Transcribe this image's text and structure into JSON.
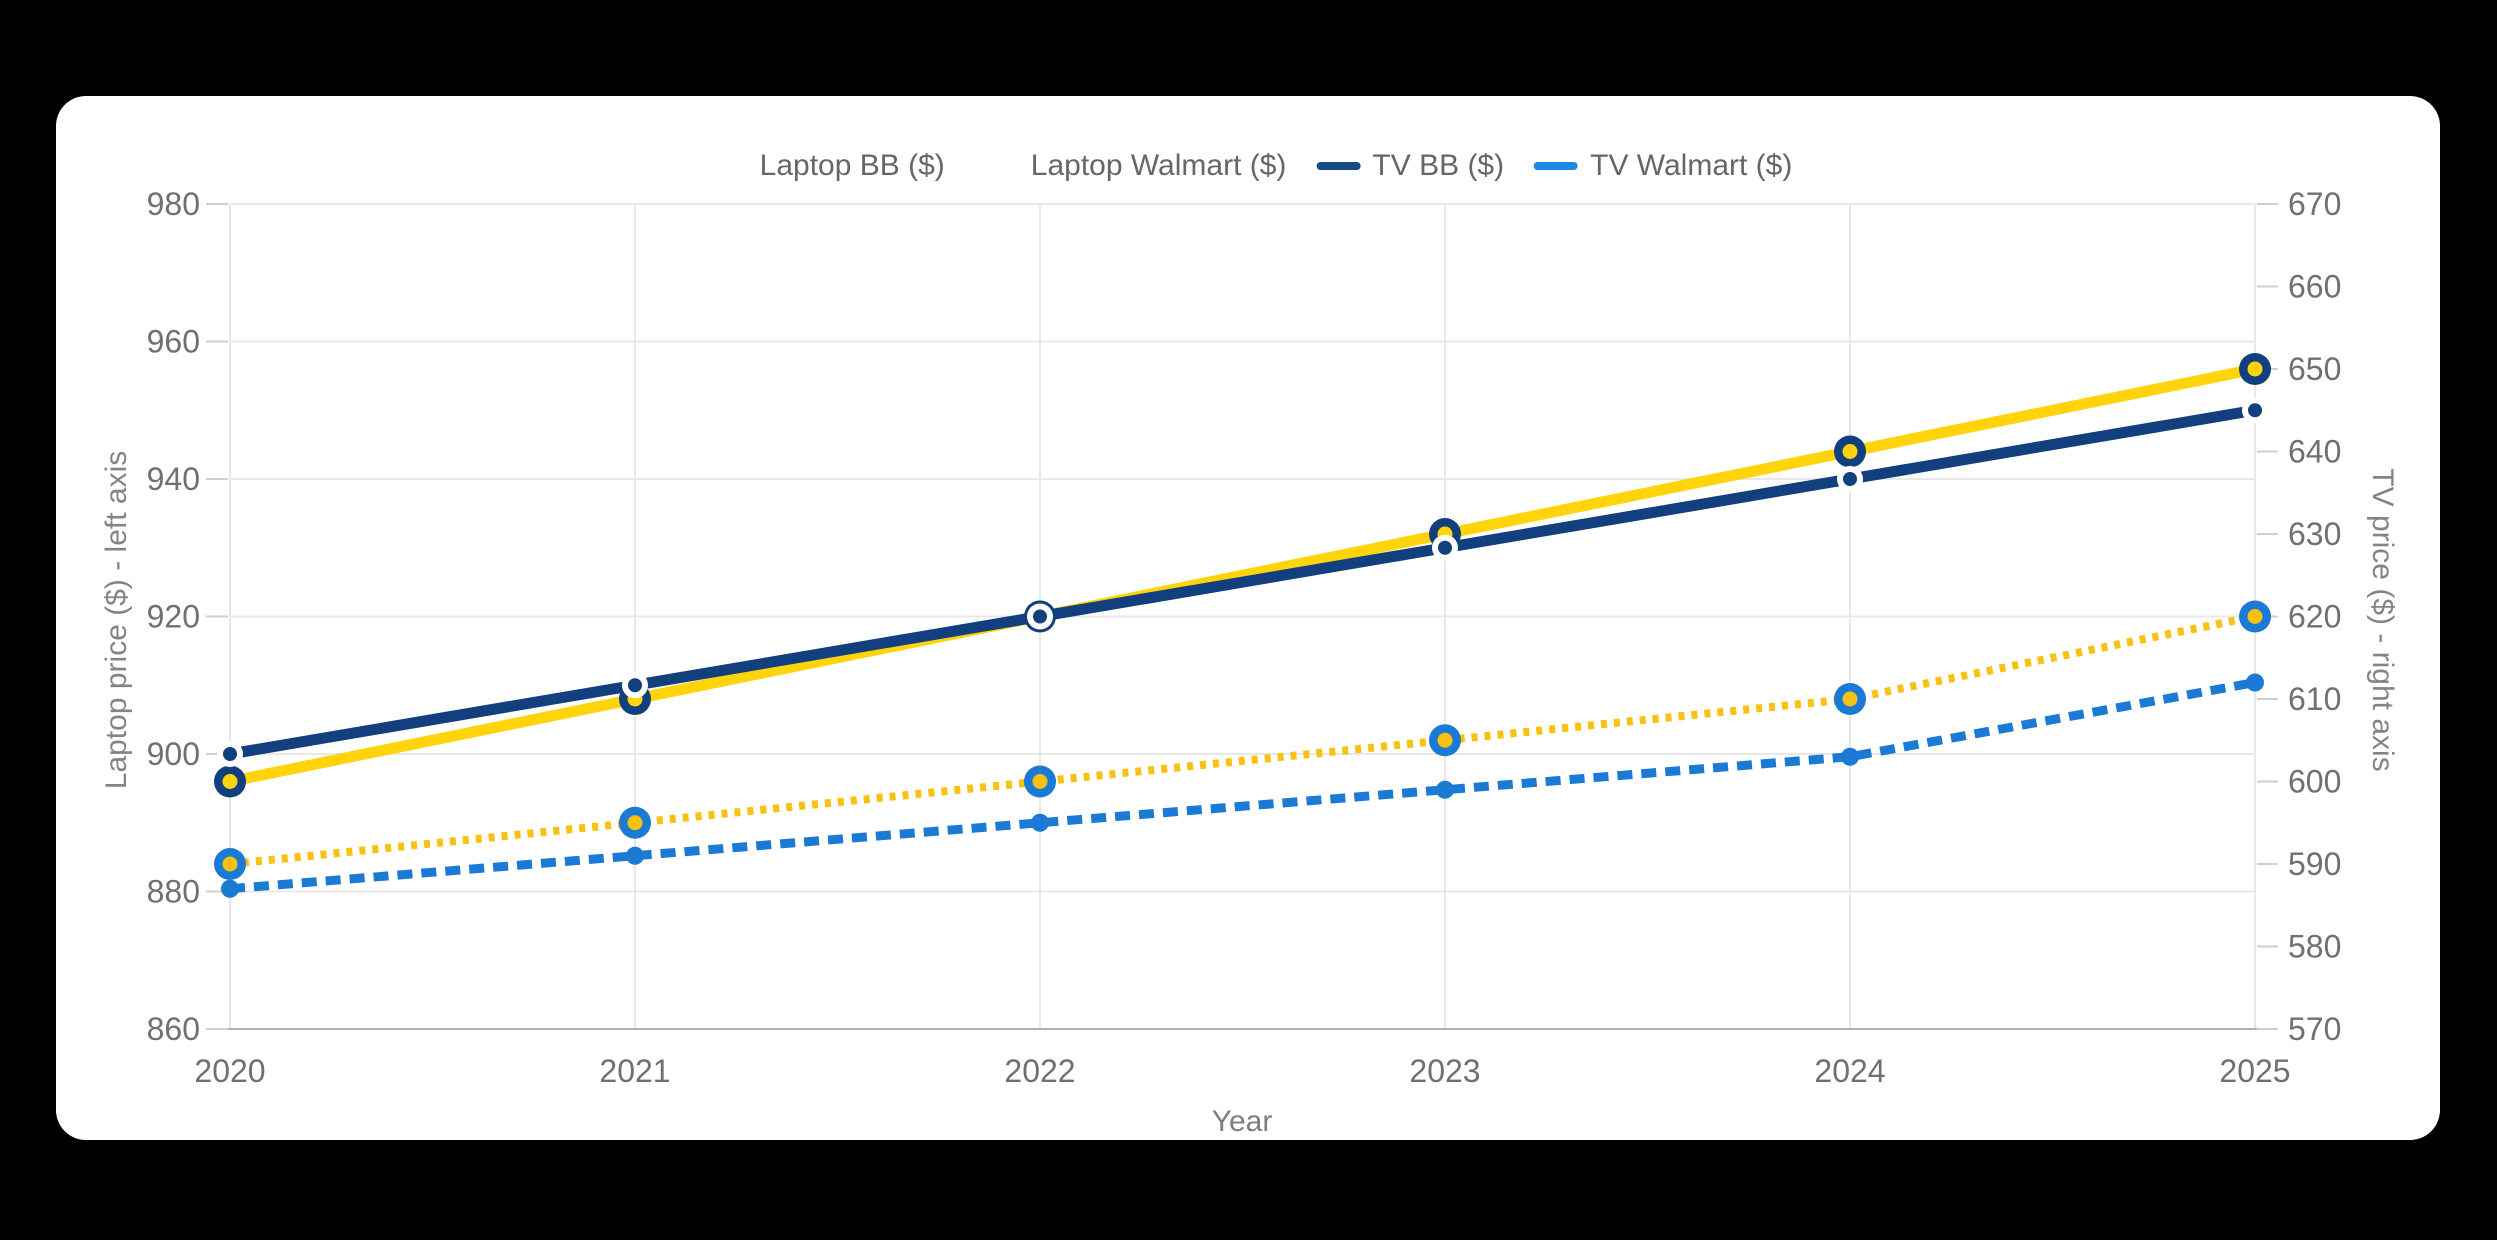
{
  "page": {
    "background_color": "#000000",
    "card_background_color": "#ffffff"
  },
  "legend": {
    "items": [
      {
        "label": "Laptop BB ($)",
        "marker_color": null
      },
      {
        "label": "Laptop Walmart ($)",
        "marker_color": null
      },
      {
        "label": "TV BB ($)",
        "marker_color": "#174a83"
      },
      {
        "label": "TV Walmart ($)",
        "marker_color": "#1e88e5"
      }
    ]
  },
  "chart_data": {
    "type": "line",
    "title": "",
    "x_label": "Year",
    "categories": [
      "2020",
      "2021",
      "2022",
      "2023",
      "2024",
      "2025"
    ],
    "axes": {
      "left": {
        "title": "Laptop price ($) - left axis",
        "min": 860,
        "max": 980,
        "ticks": [
          980,
          960,
          940,
          920,
          900,
          880,
          860
        ]
      },
      "right": {
        "title": "TV price ($) - right axis",
        "min": 570,
        "max": 670,
        "ticks": [
          670,
          660,
          650,
          640,
          630,
          620,
          610,
          600,
          590,
          580,
          570
        ]
      }
    },
    "series": [
      {
        "name": "Laptop BB ($)",
        "axis": "left",
        "values": [
          900,
          910,
          920,
          930,
          940,
          950
        ],
        "color": "#123f7d",
        "line_style": "solid",
        "marker": "halo-dot"
      },
      {
        "name": "Laptop Walmart ($)",
        "axis": "left",
        "values": [
          896,
          908,
          920,
          932,
          944,
          956
        ],
        "color": "#ffd40a",
        "line_style": "solid",
        "marker": "ring",
        "marker_ring_color": "#123f7d"
      },
      {
        "name": "TV BB ($)",
        "axis": "right",
        "values": [
          590,
          595,
          600,
          605,
          610,
          620
        ],
        "color": "#f9c212",
        "line_style": "dotted",
        "marker": "ring",
        "marker_ring_color": "#1b7ad4"
      },
      {
        "name": "TV Walmart ($)",
        "axis": "right",
        "values": [
          587,
          591,
          595,
          599,
          603,
          612
        ],
        "color": "#1b7ad4",
        "line_style": "dashed",
        "marker": "dot"
      }
    ],
    "grid": {
      "horizontal": true,
      "vertical": true
    },
    "legend_position": "top-center",
    "tick_label_color": "#707070",
    "grid_color": "#e8e8e8",
    "tick_mark_color": "#cfcfcf",
    "axis_line_color": "#b0b0b0"
  }
}
